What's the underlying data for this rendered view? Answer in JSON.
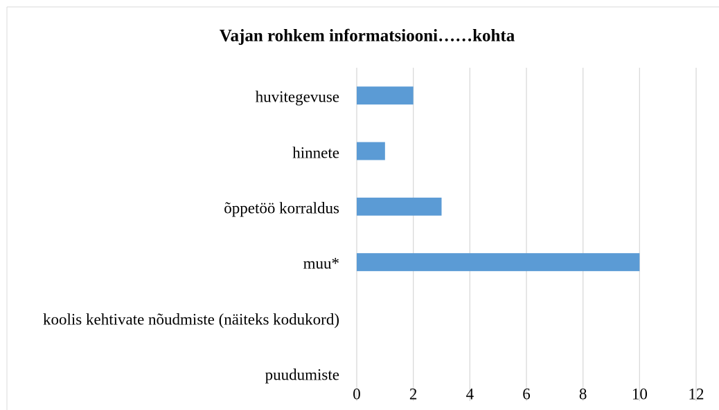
{
  "chart_data": {
    "type": "bar",
    "orientation": "horizontal",
    "title": "Vajan rohkem informatsiooni……kohta",
    "categories": [
      "huvitegevuse",
      "hinnete",
      "õppetöö korraldus",
      "muu*",
      "koolis kehtivate nõudmiste (näiteks kodukord)",
      "puudumiste"
    ],
    "values": [
      2,
      1,
      3,
      10,
      0,
      0
    ],
    "color": "#5b9bd5",
    "xlim": [
      0,
      12
    ],
    "xticks": [
      0,
      2,
      4,
      6,
      8,
      10,
      12
    ],
    "grid": true
  }
}
